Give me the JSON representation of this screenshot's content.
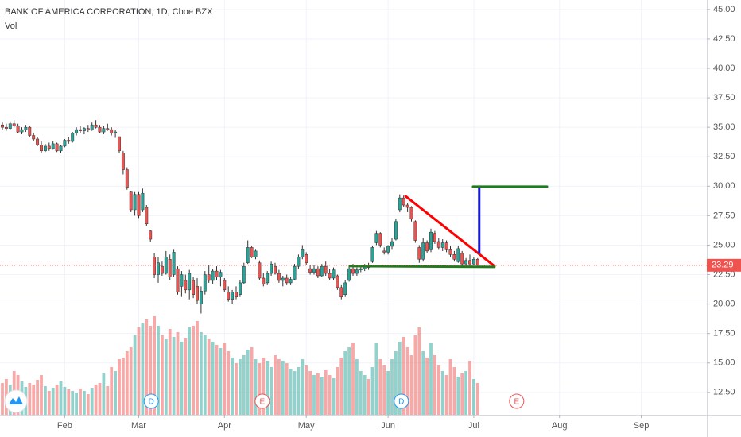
{
  "chart_data": {
    "type": "candlestick",
    "title": "BANK OF AMERICA CORPORATION, 1D, Cboe BZX",
    "subtitle": "Vol",
    "up_color": "#26a69a",
    "down_color": "#ef5350",
    "ylim": [
      10.6,
      45.8
    ],
    "yticks": [
      {
        "value": 12.5,
        "label": "12.50"
      },
      {
        "value": 15,
        "label": "15.00"
      },
      {
        "value": 17.5,
        "label": "17.50"
      },
      {
        "value": 20,
        "label": "20.00"
      },
      {
        "value": 22.5,
        "label": "22.50"
      },
      {
        "value": 25,
        "label": "25.00"
      },
      {
        "value": 27.5,
        "label": "27.50"
      },
      {
        "value": 30,
        "label": "30.00"
      },
      {
        "value": 32.5,
        "label": "32.50"
      },
      {
        "value": 35,
        "label": "35.00"
      },
      {
        "value": 37.5,
        "label": "37.50"
      },
      {
        "value": 40,
        "label": "40.00"
      },
      {
        "value": 42.5,
        "label": "42.50"
      },
      {
        "value": 45,
        "label": "45.00"
      }
    ],
    "xticks": [
      {
        "value": 16,
        "label": "Feb"
      },
      {
        "value": 35,
        "label": "Mar"
      },
      {
        "value": 57,
        "label": "Apr"
      },
      {
        "value": 78,
        "label": "May"
      },
      {
        "value": 99,
        "label": "Jun"
      },
      {
        "value": 121,
        "label": "Jul"
      },
      {
        "value": 143,
        "label": "Aug"
      },
      {
        "value": 164,
        "label": "Sep"
      }
    ],
    "last_price": {
      "value": 23.29,
      "label": "23.29",
      "color": "#ef5350"
    },
    "candles": [
      [
        35.2,
        35.4,
        34.8,
        35.0
      ],
      [
        35.0,
        35.3,
        34.7,
        34.9
      ],
      [
        34.9,
        35.5,
        34.8,
        35.3
      ],
      [
        35.3,
        35.6,
        35.0,
        35.1
      ],
      [
        35.1,
        35.3,
        34.5,
        34.6
      ],
      [
        34.6,
        35.0,
        34.4,
        34.8
      ],
      [
        34.8,
        35.2,
        34.6,
        35.0
      ],
      [
        35.0,
        35.1,
        34.2,
        34.3
      ],
      [
        34.3,
        34.5,
        33.8,
        34.0
      ],
      [
        34.0,
        34.2,
        33.4,
        33.5
      ],
      [
        33.5,
        33.8,
        32.8,
        33.0
      ],
      [
        33.0,
        33.6,
        32.9,
        33.4
      ],
      [
        33.4,
        33.7,
        33.0,
        33.2
      ],
      [
        33.2,
        33.8,
        33.1,
        33.6
      ],
      [
        33.6,
        33.7,
        32.9,
        33.0
      ],
      [
        33.0,
        33.5,
        32.8,
        33.4
      ],
      [
        33.4,
        34.0,
        33.3,
        33.9
      ],
      [
        33.9,
        34.2,
        33.6,
        33.8
      ],
      [
        33.8,
        34.6,
        33.7,
        34.5
      ],
      [
        34.5,
        35.0,
        34.3,
        34.8
      ],
      [
        34.8,
        35.1,
        34.5,
        34.7
      ],
      [
        34.7,
        35.0,
        34.4,
        34.9
      ],
      [
        34.9,
        35.2,
        34.6,
        34.8
      ],
      [
        34.8,
        35.4,
        34.7,
        35.2
      ],
      [
        35.2,
        35.6,
        34.9,
        35.0
      ],
      [
        35.0,
        35.2,
        34.5,
        34.6
      ],
      [
        34.6,
        35.1,
        34.4,
        34.9
      ],
      [
        34.9,
        35.3,
        34.7,
        34.8
      ],
      [
        34.8,
        35.0,
        34.3,
        34.5
      ],
      [
        34.5,
        34.8,
        34.1,
        34.6
      ],
      [
        34.2,
        34.2,
        32.8,
        33.0
      ],
      [
        32.8,
        33.0,
        31.0,
        31.4
      ],
      [
        31.4,
        31.6,
        29.7,
        29.9
      ],
      [
        29.5,
        29.6,
        27.8,
        28.0
      ],
      [
        28.0,
        29.5,
        27.5,
        29.3
      ],
      [
        29.3,
        29.5,
        27.3,
        27.5
      ],
      [
        28.0,
        29.8,
        27.8,
        29.4
      ],
      [
        28.2,
        28.4,
        26.6,
        26.8
      ],
      [
        26.2,
        26.3,
        25.3,
        25.5
      ],
      [
        24.0,
        24.3,
        22.2,
        22.5
      ],
      [
        22.5,
        24.0,
        21.8,
        23.5
      ],
      [
        23.2,
        23.6,
        22.4,
        22.6
      ],
      [
        22.6,
        24.5,
        22.5,
        24.0
      ],
      [
        23.8,
        24.2,
        22.0,
        22.3
      ],
      [
        22.5,
        24.6,
        22.3,
        24.4
      ],
      [
        23.0,
        23.2,
        20.8,
        21.0
      ],
      [
        21.5,
        22.8,
        20.6,
        22.5
      ],
      [
        22.0,
        22.5,
        20.9,
        21.2
      ],
      [
        21.2,
        22.9,
        20.4,
        22.6
      ],
      [
        22.0,
        22.3,
        20.5,
        20.8
      ],
      [
        21.5,
        22.2,
        20.0,
        20.3
      ],
      [
        20.0,
        21.5,
        19.2,
        21.1
      ],
      [
        21.1,
        22.8,
        20.8,
        22.5
      ],
      [
        22.5,
        23.3,
        21.8,
        22.0
      ],
      [
        22.0,
        23.0,
        21.7,
        22.8
      ],
      [
        22.8,
        23.2,
        22.0,
        22.3
      ],
      [
        22.3,
        22.9,
        21.5,
        22.7
      ],
      [
        22.0,
        22.2,
        21.0,
        21.2
      ],
      [
        21.0,
        21.5,
        20.2,
        20.4
      ],
      [
        20.4,
        21.2,
        20.0,
        21.0
      ],
      [
        21.0,
        21.5,
        20.4,
        20.6
      ],
      [
        20.8,
        22.0,
        20.6,
        21.8
      ],
      [
        21.8,
        23.5,
        21.7,
        23.2
      ],
      [
        23.5,
        25.4,
        23.4,
        24.8
      ],
      [
        24.8,
        24.9,
        23.9,
        24.0
      ],
      [
        24.0,
        24.6,
        23.8,
        24.5
      ],
      [
        23.5,
        23.7,
        22.0,
        22.2
      ],
      [
        22.2,
        22.6,
        21.5,
        21.7
      ],
      [
        21.8,
        22.8,
        21.6,
        22.6
      ],
      [
        22.6,
        23.6,
        22.4,
        23.4
      ],
      [
        23.2,
        23.5,
        22.5,
        22.6
      ],
      [
        22.6,
        22.9,
        21.8,
        22.0
      ],
      [
        22.0,
        22.4,
        21.5,
        22.2
      ],
      [
        22.2,
        22.5,
        21.6,
        21.8
      ],
      [
        21.8,
        22.3,
        21.6,
        22.1
      ],
      [
        22.1,
        23.4,
        22.0,
        23.2
      ],
      [
        23.2,
        24.2,
        23.0,
        24.0
      ],
      [
        24.0,
        25.0,
        23.8,
        24.6
      ],
      [
        24.2,
        24.4,
        23.3,
        23.5
      ],
      [
        23.0,
        23.3,
        22.5,
        22.7
      ],
      [
        22.7,
        23.3,
        22.5,
        23.0
      ],
      [
        23.0,
        23.2,
        22.2,
        22.4
      ],
      [
        22.4,
        23.4,
        22.3,
        23.2
      ],
      [
        23.2,
        23.6,
        22.4,
        22.6
      ],
      [
        22.6,
        23.0,
        22.0,
        22.2
      ],
      [
        22.2,
        23.1,
        22.0,
        22.9
      ],
      [
        22.4,
        22.5,
        21.2,
        21.4
      ],
      [
        21.4,
        21.6,
        20.4,
        20.6
      ],
      [
        20.8,
        22.0,
        20.6,
        21.8
      ],
      [
        22.0,
        23.2,
        21.9,
        23.0
      ],
      [
        23.0,
        23.4,
        22.4,
        22.6
      ],
      [
        22.6,
        23.1,
        22.4,
        22.9
      ],
      [
        22.9,
        23.3,
        22.7,
        23.0
      ],
      [
        23.0,
        23.4,
        22.8,
        23.2
      ],
      [
        23.2,
        23.5,
        22.9,
        23.1
      ],
      [
        23.6,
        24.9,
        23.5,
        24.8
      ],
      [
        25.2,
        26.2,
        25.0,
        26.0
      ],
      [
        26.0,
        26.1,
        24.8,
        25.0
      ],
      [
        24.5,
        24.8,
        24.2,
        24.4
      ],
      [
        24.4,
        25.0,
        24.2,
        24.9
      ],
      [
        24.9,
        25.6,
        24.6,
        25.3
      ],
      [
        25.5,
        27.2,
        25.4,
        27.0
      ],
      [
        28.0,
        29.3,
        27.8,
        29.0
      ],
      [
        29.0,
        29.2,
        28.2,
        28.4
      ],
      [
        28.4,
        28.6,
        27.8,
        28.2
      ],
      [
        28.2,
        28.3,
        27.0,
        27.2
      ],
      [
        27.0,
        27.1,
        25.2,
        25.4
      ],
      [
        24.8,
        25.0,
        23.5,
        23.8
      ],
      [
        23.8,
        25.6,
        23.6,
        25.2
      ],
      [
        25.2,
        25.4,
        24.3,
        24.5
      ],
      [
        24.6,
        26.4,
        24.4,
        26.1
      ],
      [
        26.0,
        26.2,
        25.1,
        25.3
      ],
      [
        25.3,
        25.6,
        24.6,
        24.8
      ],
      [
        24.8,
        25.5,
        24.5,
        25.2
      ],
      [
        25.2,
        25.4,
        24.4,
        24.6
      ],
      [
        24.6,
        24.9,
        24.0,
        24.2
      ],
      [
        24.2,
        24.5,
        23.6,
        23.8
      ],
      [
        23.6,
        24.9,
        23.5,
        24.7
      ],
      [
        24.3,
        24.5,
        23.2,
        23.4
      ],
      [
        23.4,
        23.9,
        23.2,
        23.7
      ],
      [
        23.7,
        24.2,
        23.2,
        23.4
      ],
      [
        23.4,
        24.0,
        23.3,
        23.8
      ],
      [
        23.8,
        23.9,
        23.2,
        23.29
      ]
    ],
    "volume": [
      40,
      45,
      38,
      55,
      50,
      42,
      35,
      40,
      38,
      44,
      50,
      36,
      30,
      34,
      38,
      42,
      35,
      32,
      30,
      28,
      33,
      30,
      26,
      34,
      38,
      40,
      52,
      36,
      60,
      55,
      70,
      72,
      80,
      85,
      100,
      110,
      115,
      120,
      112,
      124,
      112,
      100,
      95,
      108,
      98,
      104,
      92,
      96,
      110,
      112,
      118,
      104,
      100,
      95,
      92,
      88,
      84,
      90,
      80,
      72,
      65,
      70,
      75,
      82,
      85,
      70,
      65,
      72,
      68,
      60,
      75,
      70,
      68,
      65,
      58,
      55,
      60,
      70,
      62,
      55,
      50,
      52,
      48,
      56,
      50,
      46,
      60,
      72,
      80,
      85,
      90,
      70,
      55,
      50,
      45,
      60,
      90,
      70,
      62,
      55,
      70,
      80,
      92,
      98,
      85,
      75,
      100,
      110,
      80,
      72,
      90,
      75,
      62,
      55,
      50,
      70,
      60,
      48,
      52,
      55,
      68,
      45,
      40
    ],
    "trendlines": [
      {
        "color": "#ff0000",
        "x": [
          103.5,
          126.3
        ],
        "y": [
          29.15,
          23.22
        ]
      },
      {
        "color": "#1e7b1e",
        "x": [
          89.2,
          126.3
        ],
        "y": [
          23.22,
          23.15
        ]
      },
      {
        "color": "#1515e6",
        "x": [
          122.4,
          122.4
        ],
        "y": [
          29.96,
          24.37
        ]
      },
      {
        "color": "#1e7b1e",
        "x": [
          120.8,
          139.8
        ],
        "y": [
          29.96,
          29.96
        ]
      }
    ],
    "events": [
      {
        "label": "D",
        "x": 38.2,
        "color": "#2196f3"
      },
      {
        "label": "E",
        "x": 66.7,
        "color": "#ef5350"
      },
      {
        "label": "D",
        "x": 102.4,
        "color": "#2196f3"
      },
      {
        "label": "E",
        "x": 132,
        "color": "#ef5350"
      }
    ]
  }
}
